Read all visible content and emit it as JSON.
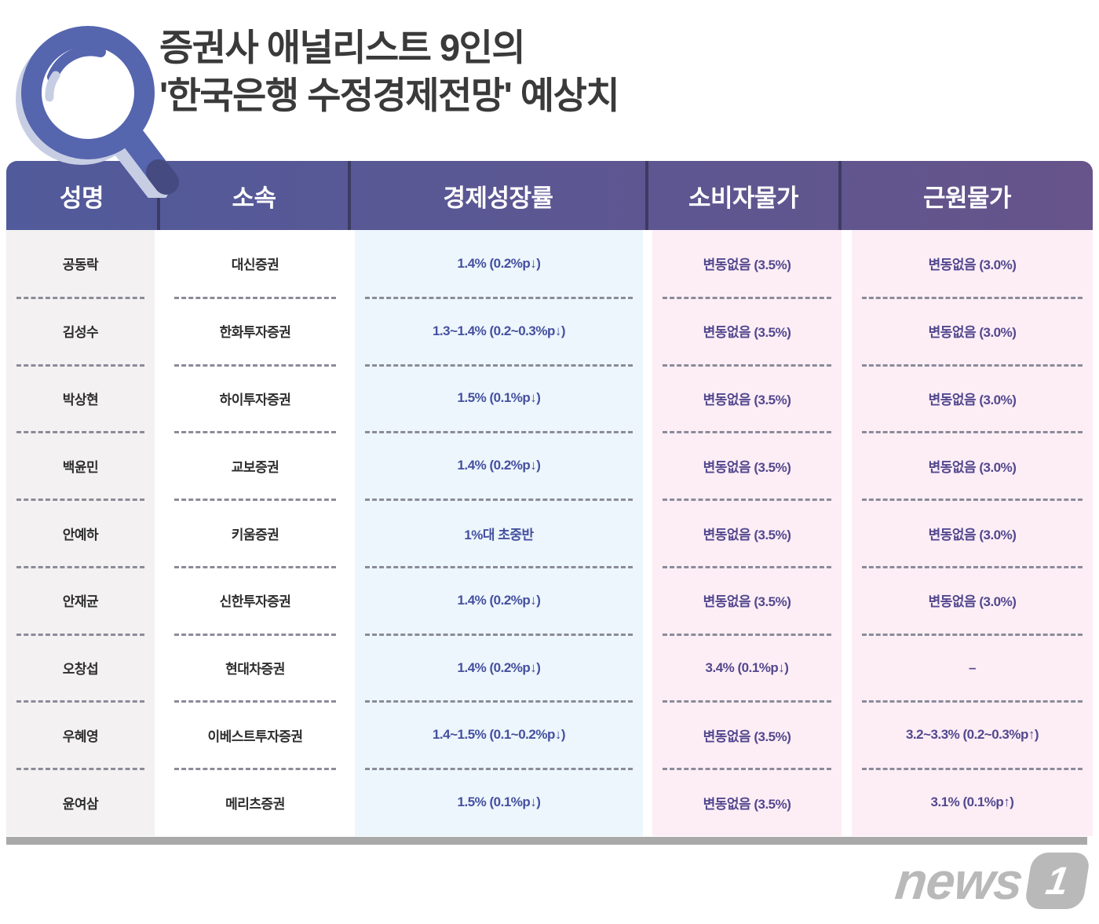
{
  "title": {
    "line1": "증권사 애널리스트 9인의",
    "line2": "'한국은행 수정경제전망' 예상치"
  },
  "icons": {
    "title_icon": "search-magnifier-icon"
  },
  "colors": {
    "header-left": "#515a9b",
    "header-right": "#66548a",
    "header-divider": "#3c3b63",
    "col-gray": "#f3f1f1",
    "col-blue": "#ecf6fc",
    "col-pink": "#fdeef6",
    "value-blue": "#4650a0",
    "value-purple": "#53488e",
    "icon-blue": "#5565ae",
    "icon-light": "#c7cee4",
    "bar-gray": "#a9a9a9",
    "logo-gray": "#b9b9b9"
  },
  "table": {
    "columns": [
      {
        "key": "name",
        "label": "성명"
      },
      {
        "key": "firm",
        "label": "소속"
      },
      {
        "key": "growth",
        "label": "경제성장률"
      },
      {
        "key": "cpi",
        "label": "소비자물가"
      },
      {
        "key": "core",
        "label": "근원물가"
      }
    ],
    "rows": [
      {
        "name": "공동락",
        "firm": "대신증권",
        "growth": "1.4% (0.2%p↓)",
        "cpi": "변동없음 (3.5%)",
        "core": "변동없음 (3.0%)"
      },
      {
        "name": "김성수",
        "firm": "한화투자증권",
        "growth": "1.3~1.4% (0.2~0.3%p↓)",
        "cpi": "변동없음 (3.5%)",
        "core": "변동없음 (3.0%)"
      },
      {
        "name": "박상현",
        "firm": "하이투자증권",
        "growth": "1.5% (0.1%p↓)",
        "cpi": "변동없음 (3.5%)",
        "core": "변동없음 (3.0%)"
      },
      {
        "name": "백윤민",
        "firm": "교보증권",
        "growth": "1.4% (0.2%p↓)",
        "cpi": "변동없음 (3.5%)",
        "core": "변동없음 (3.0%)"
      },
      {
        "name": "안예하",
        "firm": "키움증권",
        "growth": "1%대 초중반",
        "cpi": "변동없음 (3.5%)",
        "core": "변동없음 (3.0%)"
      },
      {
        "name": "안재균",
        "firm": "신한투자증권",
        "growth": "1.4% (0.2%p↓)",
        "cpi": "변동없음 (3.5%)",
        "core": "변동없음 (3.0%)"
      },
      {
        "name": "오창섭",
        "firm": "현대차증권",
        "growth": "1.4% (0.2%p↓)",
        "cpi": "3.4% (0.1%p↓)",
        "core": "–"
      },
      {
        "name": "우혜영",
        "firm": "이베스트투자증권",
        "growth": "1.4~1.5% (0.1~0.2%p↓)",
        "cpi": "변동없음 (3.5%)",
        "core": "3.2~3.3% (0.2~0.3%p↑)"
      },
      {
        "name": "윤여삼",
        "firm": "메리츠증권",
        "growth": "1.5% (0.1%p↓)",
        "cpi": "변동없음 (3.5%)",
        "core": "3.1% (0.1%p↑)"
      }
    ]
  },
  "chart_data": {
    "type": "table",
    "title": "증권사 애널리스트 9인의 '한국은행 수정경제전망' 예상치",
    "columns": [
      "성명",
      "소속",
      "경제성장률",
      "소비자물가",
      "근원물가"
    ],
    "rows": [
      [
        "공동락",
        "대신증권",
        "1.4% (0.2%p↓)",
        "변동없음 (3.5%)",
        "변동없음 (3.0%)"
      ],
      [
        "김성수",
        "한화투자증권",
        "1.3~1.4% (0.2~0.3%p↓)",
        "변동없음 (3.5%)",
        "변동없음 (3.0%)"
      ],
      [
        "박상현",
        "하이투자증권",
        "1.5% (0.1%p↓)",
        "변동없음 (3.5%)",
        "변동없음 (3.0%)"
      ],
      [
        "백윤민",
        "교보증권",
        "1.4% (0.2%p↓)",
        "변동없음 (3.5%)",
        "변동없음 (3.0%)"
      ],
      [
        "안예하",
        "키움증권",
        "1%대 초중반",
        "변동없음 (3.5%)",
        "변동없음 (3.0%)"
      ],
      [
        "안재균",
        "신한투자증권",
        "1.4% (0.2%p↓)",
        "변동없음 (3.5%)",
        "변동없음 (3.0%)"
      ],
      [
        "오창섭",
        "현대차증권",
        "1.4% (0.2%p↓)",
        "3.4% (0.1%p↓)",
        "–"
      ],
      [
        "우혜영",
        "이베스트투자증권",
        "1.4~1.5% (0.1~0.2%p↓)",
        "변동없음 (3.5%)",
        "3.2~3.3% (0.2~0.3%p↑)"
      ],
      [
        "윤여삼",
        "메리츠증권",
        "1.5% (0.1%p↓)",
        "변동없음 (3.5%)",
        "3.1% (0.1%p↑)"
      ]
    ]
  },
  "footer": {
    "logo_text": "news",
    "logo_badge": "1"
  }
}
